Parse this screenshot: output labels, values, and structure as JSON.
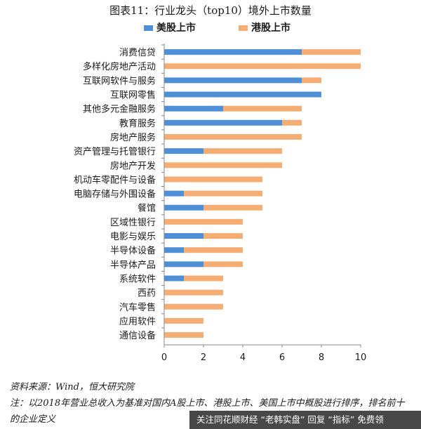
{
  "figure_title": "图表11：行业龙头（top10）境外上市数量",
  "source_note": "资料来源：Wind，恒大研究院",
  "footnote": "注：以2018年营业总收入为基准对国内A股上市、港股上市、美国上市中概股进行排序，排名前十的企业定义",
  "watermark_text": "关注同花顺财经 “老韩实盘” 回复 “指标” 免费领",
  "colors": {
    "us": "#4f8fd6",
    "hk": "#f5ad74",
    "axis": "#888888"
  },
  "chart_data": {
    "type": "bar",
    "orientation": "horizontal",
    "stacked": true,
    "categories": [
      "消费信贷",
      "多样化房地产活动",
      "互联网软件与服务",
      "互联网零售",
      "其他多元金融服务",
      "教育服务",
      "房地产服务",
      "资产管理与托管银行",
      "房地产开发",
      "机动车零配件与设备",
      "电脑存储与外围设备",
      "餐馆",
      "区域性银行",
      "电影与娱乐",
      "半导体设备",
      "半导体产品",
      "系统软件",
      "西药",
      "汽车零售",
      "应用软件",
      "通信设备"
    ],
    "series": [
      {
        "name": "美股上市",
        "color": "#4f8fd6",
        "values": [
          7,
          0,
          7,
          8,
          3,
          6,
          0,
          2,
          0,
          0,
          1,
          2,
          0,
          2,
          1,
          2,
          1,
          0,
          0,
          0,
          0
        ]
      },
      {
        "name": "港股上市",
        "color": "#f5ad74",
        "values": [
          3,
          10,
          1,
          0,
          4,
          1,
          7,
          4,
          6,
          5,
          4,
          3,
          4,
          2,
          3,
          2,
          2,
          3,
          3,
          2,
          2
        ]
      }
    ],
    "xlim": [
      0,
      10
    ],
    "xticks": [
      0,
      2,
      4,
      6,
      8,
      10
    ],
    "legend_position": "top",
    "grid": false
  }
}
